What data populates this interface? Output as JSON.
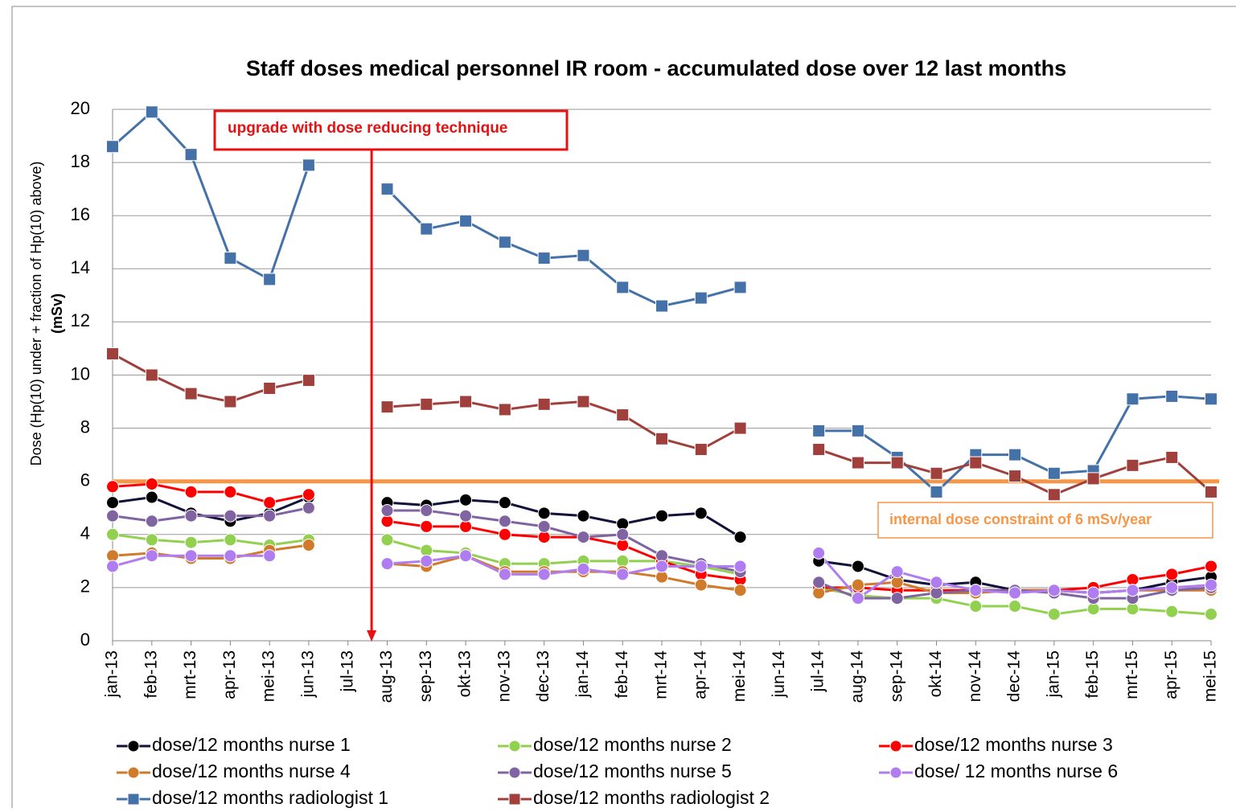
{
  "chart_data": {
    "type": "line",
    "title": "Staff doses medical personnel IR room -  accumulated dose over 12 last months",
    "y_label": [
      "Dose  (Hp(10) under + fraction of Hp(10) above)",
      "(mSv)"
    ],
    "categories": [
      "jan-13",
      "feb-13",
      "mrt-13",
      "apr-13",
      "mei-13",
      "jun-13",
      "jul-13",
      "aug-13",
      "sep-13",
      "okt-13",
      "nov-13",
      "dec-13",
      "jan-14",
      "feb-14",
      "mrt-14",
      "apr-14",
      "mei-14",
      "jun-14",
      "jul-14",
      "aug-14",
      "sep-14",
      "okt-14",
      "nov-14",
      "dec-14",
      "jan-15",
      "feb-15",
      "mrt-15",
      "apr-15",
      "mei-15"
    ],
    "ylim": [
      0,
      20
    ],
    "yticks": [
      0,
      2,
      4,
      6,
      8,
      10,
      12,
      14,
      16,
      18,
      20
    ],
    "grid": true,
    "series": [
      {
        "name": "dose/12 months nurse 1",
        "color": "#000000",
        "line_color": "#10123a",
        "marker": "circle",
        "values": [
          5.2,
          5.4,
          4.8,
          4.5,
          4.8,
          5.4,
          null,
          5.2,
          5.1,
          5.3,
          5.2,
          4.8,
          4.7,
          4.4,
          4.7,
          4.8,
          3.9,
          null,
          3.0,
          2.8,
          2.3,
          2.1,
          2.2,
          1.9,
          1.9,
          1.8,
          1.9,
          2.2,
          2.4
        ]
      },
      {
        "name": "dose/12 months nurse 2",
        "color": "#92d050",
        "line_color": "#92d050",
        "marker": "circle",
        "values": [
          4.0,
          3.8,
          3.7,
          3.8,
          3.6,
          3.8,
          null,
          3.8,
          3.4,
          3.3,
          2.9,
          2.9,
          3.0,
          3.0,
          3.0,
          2.8,
          2.5,
          null,
          2.0,
          1.7,
          1.6,
          1.6,
          1.3,
          1.3,
          1.0,
          1.2,
          1.2,
          1.1,
          1.0
        ]
      },
      {
        "name": "dose/12 months nurse 3",
        "color": "#ff0000",
        "line_color": "#ff0000",
        "marker": "circle",
        "values": [
          5.8,
          5.9,
          5.6,
          5.6,
          5.2,
          5.5,
          null,
          4.5,
          4.3,
          4.3,
          4.0,
          3.9,
          3.9,
          3.6,
          3.0,
          2.5,
          2.3,
          null,
          2.0,
          2.0,
          1.9,
          1.9,
          1.9,
          1.9,
          1.9,
          2.0,
          2.3,
          2.5,
          2.8
        ]
      },
      {
        "name": "dose/12 months nurse 4",
        "color": "#d07a2c",
        "line_color": "#d07a2c",
        "marker": "circle",
        "values": [
          3.2,
          3.3,
          3.1,
          3.1,
          3.4,
          3.6,
          null,
          2.9,
          2.8,
          3.2,
          2.6,
          2.6,
          2.6,
          2.6,
          2.4,
          2.1,
          1.9,
          null,
          1.8,
          2.1,
          2.2,
          1.8,
          1.8,
          1.9,
          1.9,
          1.8,
          1.9,
          1.9,
          1.9
        ]
      },
      {
        "name": "dose/12 months nurse 5",
        "color": "#8064a2",
        "line_color": "#8064a2",
        "marker": "circle",
        "values": [
          4.7,
          4.5,
          4.7,
          4.7,
          4.7,
          5.0,
          null,
          4.9,
          4.9,
          4.7,
          4.5,
          4.3,
          3.9,
          4.0,
          3.2,
          2.9,
          2.6,
          null,
          2.2,
          1.6,
          1.6,
          1.8,
          1.9,
          1.9,
          1.8,
          1.6,
          1.6,
          1.9,
          2.0
        ]
      },
      {
        "name": "dose/ 12 months nurse 6",
        "color": "#b07df0",
        "line_color": "#b07df0",
        "marker": "circle",
        "values": [
          2.8,
          3.2,
          3.2,
          3.2,
          3.2,
          null,
          null,
          2.9,
          3.0,
          3.2,
          2.5,
          2.5,
          2.7,
          2.5,
          2.8,
          2.8,
          2.8,
          null,
          3.3,
          1.6,
          2.6,
          2.2,
          1.9,
          1.8,
          1.9,
          1.8,
          1.9,
          2.0,
          2.1
        ]
      },
      {
        "name": "dose/12 months radiologist 1",
        "color": "#4472a8",
        "line_color": "#4472a8",
        "marker": "square",
        "values": [
          18.6,
          19.9,
          18.3,
          14.4,
          13.6,
          17.9,
          null,
          17.0,
          15.5,
          15.8,
          15.0,
          14.4,
          14.5,
          13.3,
          12.6,
          12.9,
          13.3,
          null,
          7.9,
          7.9,
          6.9,
          5.6,
          7.0,
          7.0,
          6.3,
          6.4,
          9.1,
          9.2,
          9.1
        ]
      },
      {
        "name": "dose/12 months radiologist 2",
        "color": "#a0403c",
        "line_color": "#a0403c",
        "marker": "square",
        "values": [
          10.8,
          10.0,
          9.3,
          9.0,
          9.5,
          9.8,
          null,
          8.8,
          8.9,
          9.0,
          8.7,
          8.9,
          9.0,
          8.5,
          7.6,
          7.2,
          8.0,
          null,
          7.2,
          6.7,
          6.7,
          6.3,
          6.7,
          6.2,
          5.5,
          6.1,
          6.6,
          6.9,
          5.6
        ]
      }
    ],
    "constraint": {
      "value": 6,
      "color": "#f79646",
      "label": "internal dose constraint of 6 mSv/year"
    },
    "annotation": {
      "label": "upgrade with dose reducing technique",
      "color": "#e81010"
    }
  }
}
